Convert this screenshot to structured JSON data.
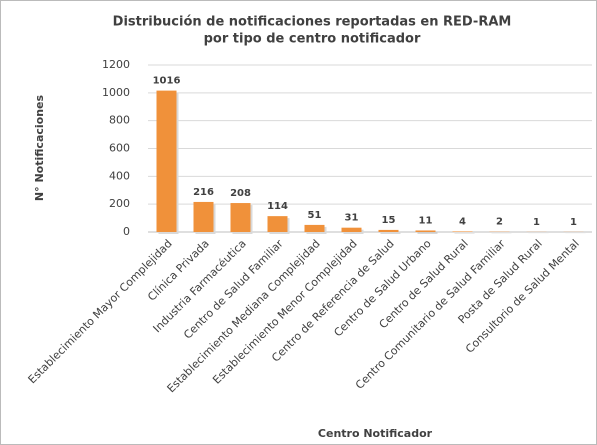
{
  "chart_data": {
    "type": "bar",
    "title": [
      "Distribución de notificaciones reportadas en RED-RAM",
      "por tipo de centro notificador"
    ],
    "x_label": "Centro Notificador",
    "y_label": "N° Notificaciones",
    "categories": [
      "Establecimiento Mayor Complejidad",
      "Clínica Privada",
      "Industria Farmacéutica",
      "Centro de Salud Familiar",
      "Establecimiento Mediana Complejidad",
      "Establecimiento Menor Complejidad",
      "Centro de Referencia de Salud",
      "Centro de Salud Urbano",
      "Centro de Salud Rural",
      "Centro Comunitario de Salud Familiar",
      "Posta de Salud Rural",
      "Consultorio de Salud Mental"
    ],
    "values": [
      1016,
      216,
      208,
      114,
      51,
      31,
      15,
      11,
      4,
      2,
      1,
      1
    ],
    "color": "#f0913a",
    "ylim": [
      0,
      1200
    ],
    "yticks": [
      0,
      200,
      400,
      600,
      800,
      1000,
      1200
    ],
    "grid": true
  }
}
